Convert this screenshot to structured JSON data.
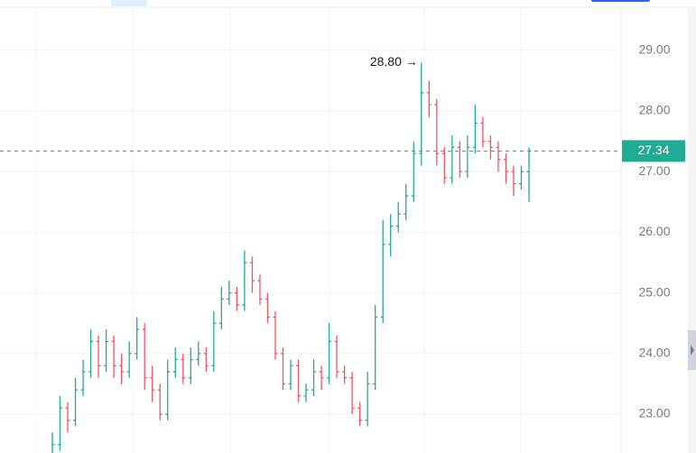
{
  "chart_data": {
    "type": "ohlc",
    "open": [
      22.3,
      22.5,
      23.1,
      22.9,
      23.4,
      23.7,
      24.2,
      23.8,
      24.2,
      23.8,
      23.7,
      24.0,
      24.4,
      23.6,
      23.4,
      23.0,
      23.7,
      23.9,
      23.6,
      23.9,
      24.0,
      23.8,
      24.5,
      24.9,
      25.0,
      24.8,
      25.5,
      25.2,
      24.9,
      24.6,
      24.0,
      23.5,
      23.8,
      23.3,
      23.4,
      23.7,
      23.6,
      24.2,
      23.7,
      23.6,
      23.1,
      22.9,
      23.5,
      24.6,
      25.8,
      26.1,
      26.3,
      26.6,
      27.3,
      28.3,
      28.1,
      27.3,
      26.9,
      27.4,
      27.0,
      27.4,
      27.8,
      27.5,
      27.4,
      27.2,
      27.0,
      26.8,
      27.0
    ],
    "high": [
      22.7,
      23.3,
      23.2,
      23.6,
      23.9,
      24.4,
      24.3,
      24.4,
      24.3,
      24.0,
      24.2,
      24.6,
      24.5,
      23.8,
      23.5,
      23.9,
      24.1,
      24.0,
      24.1,
      24.2,
      24.1,
      24.7,
      25.1,
      25.2,
      25.1,
      25.7,
      25.6,
      25.3,
      25.0,
      24.7,
      24.1,
      23.9,
      23.9,
      23.5,
      23.9,
      23.8,
      24.5,
      24.3,
      23.8,
      23.7,
      23.2,
      23.7,
      24.8,
      26.2,
      26.3,
      26.5,
      26.8,
      27.5,
      28.8,
      28.5,
      28.2,
      27.4,
      27.6,
      27.5,
      27.6,
      28.1,
      27.9,
      27.6,
      27.5,
      27.3,
      27.1,
      27.1,
      27.4
    ],
    "low": [
      22.1,
      22.4,
      22.7,
      22.8,
      23.3,
      23.6,
      23.6,
      23.7,
      23.6,
      23.5,
      23.6,
      23.9,
      23.4,
      23.2,
      22.9,
      22.9,
      23.6,
      23.5,
      23.5,
      23.8,
      23.7,
      23.7,
      24.4,
      24.8,
      24.7,
      24.7,
      25.0,
      24.8,
      24.5,
      23.9,
      23.4,
      23.4,
      23.2,
      23.2,
      23.3,
      23.4,
      23.5,
      23.6,
      23.5,
      23.0,
      22.8,
      22.8,
      23.4,
      24.5,
      25.6,
      26.0,
      26.2,
      26.5,
      27.1,
      27.9,
      27.1,
      26.8,
      26.8,
      26.9,
      26.9,
      27.3,
      27.4,
      27.2,
      27.0,
      26.8,
      26.6,
      26.7,
      26.5
    ],
    "close": [
      22.5,
      23.1,
      22.9,
      23.4,
      23.7,
      24.2,
      23.8,
      24.2,
      23.8,
      23.7,
      24.0,
      24.4,
      23.6,
      23.4,
      23.0,
      23.7,
      23.9,
      23.6,
      23.9,
      24.0,
      23.8,
      24.5,
      24.9,
      25.0,
      24.8,
      25.5,
      25.2,
      24.9,
      24.6,
      24.0,
      23.5,
      23.8,
      23.3,
      23.4,
      23.7,
      23.6,
      24.2,
      23.7,
      23.6,
      23.1,
      22.9,
      23.5,
      24.6,
      25.8,
      26.1,
      26.3,
      26.6,
      27.3,
      28.3,
      28.1,
      27.3,
      26.9,
      27.4,
      27.0,
      27.4,
      27.8,
      27.5,
      27.4,
      27.2,
      27.0,
      26.8,
      27.0,
      27.34
    ],
    "up_color": "#22ab94",
    "down_color": "#f7525f",
    "ylim": [
      22.36,
      29.83
    ],
    "yticks": [
      {
        "value": 23,
        "label": "23.00"
      },
      {
        "value": 24,
        "label": "24.00"
      },
      {
        "value": 25,
        "label": "25.00"
      },
      {
        "value": 26,
        "label": "26.00"
      },
      {
        "value": 27,
        "label": "27.00"
      },
      {
        "value": 28,
        "label": "28.00"
      },
      {
        "value": 29,
        "label": "29.00"
      }
    ],
    "grid": true,
    "high_marker": {
      "value": 28.8,
      "label": "28.80 →"
    },
    "last_price": {
      "value": 27.34,
      "label": "27.34"
    }
  }
}
